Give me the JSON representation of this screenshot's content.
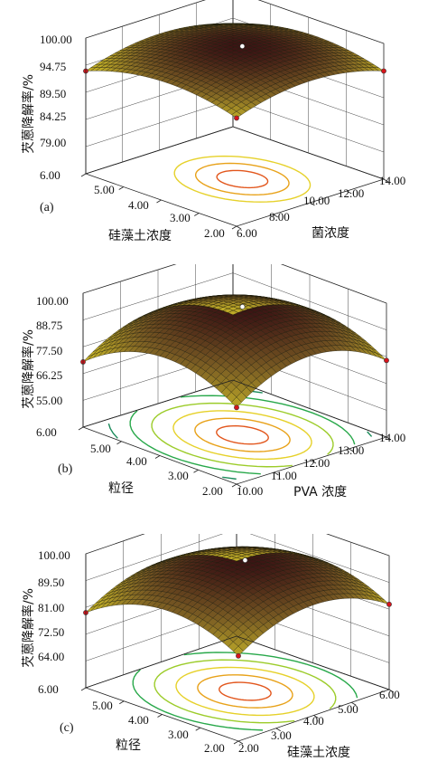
{
  "chart_data": [
    {
      "type": "surface",
      "panel_label": "(a)",
      "zlabel": "芡蒽降解率/%",
      "zlim": [
        6.0,
        100.0
      ],
      "z_ticks": [
        "100.00",
        "94.75",
        "89.50",
        "84.25",
        "79.00",
        "6.00"
      ],
      "xlabel": "硅藻土浓度",
      "x_ticks": [
        "5.00",
        "4.00",
        "3.00",
        "2.00"
      ],
      "ylabel": "菌浓度",
      "y_ticks": [
        "6.00",
        "8.00",
        "10.00",
        "12.00",
        "14.00"
      ],
      "surface": {
        "max": 98.0,
        "corner_min": 81.0
      },
      "contours": 3
    },
    {
      "type": "surface",
      "panel_label": "(b)",
      "zlabel": "芡蒽降解率/%",
      "zlim": [
        6.0,
        100.0
      ],
      "z_ticks": [
        "100.00",
        "88.75",
        "77.50",
        "66.25",
        "55.00",
        "6.00"
      ],
      "xlabel": "粒径",
      "x_ticks": [
        "5.00",
        "4.00",
        "3.00",
        "2.00"
      ],
      "ylabel": "PVA 浓度",
      "y_ticks": [
        "10.00",
        "11.00",
        "12.00",
        "13.00",
        "14.00"
      ],
      "surface": {
        "max": 96.0,
        "corner_min": 60.0
      },
      "contours": 6
    },
    {
      "type": "surface",
      "panel_label": "(c)",
      "zlabel": "芡蒽降解率/%",
      "zlim": [
        6.0,
        100.0
      ],
      "z_ticks": [
        "100.00",
        "89.50",
        "81.00",
        "72.50",
        "64.00",
        "6.00"
      ],
      "xlabel": "粒径",
      "x_ticks": [
        "5.00",
        "4.00",
        "3.00",
        "2.00"
      ],
      "ylabel": "硅藻土浓度",
      "y_ticks": [
        "2.00",
        "3.00",
        "4.00",
        "5.00",
        "6.00"
      ],
      "surface": {
        "max": 98.0,
        "corner_min": 66.0
      },
      "contours": 5
    }
  ]
}
